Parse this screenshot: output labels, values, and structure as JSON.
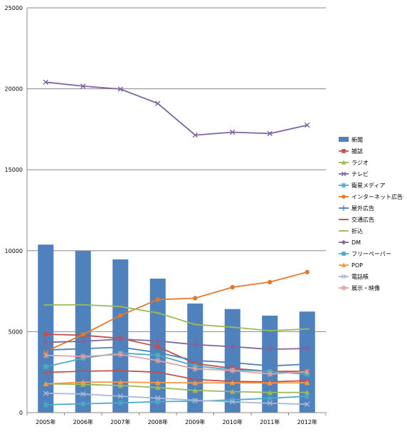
{
  "chart_data": {
    "type": "bar+line",
    "title": "",
    "xlabel": "",
    "ylabel": "",
    "ylim": [
      0,
      25000
    ],
    "yticks": [
      0,
      5000,
      10000,
      15000,
      20000,
      25000
    ],
    "grid": true,
    "legend_position": "right",
    "categories": [
      "2005年",
      "2006年",
      "2007年",
      "2008年",
      "2009年",
      "2010年",
      "2011年",
      "2012年"
    ],
    "series": [
      {
        "name": "新聞",
        "kind": "bar",
        "color": "#4f81bd",
        "marker": "rect",
        "values": [
          10377,
          9986,
          9462,
          8276,
          6739,
          6396,
          5990,
          6242
        ]
      },
      {
        "name": "雑誌",
        "kind": "line",
        "color": "#c0504d",
        "marker": "square",
        "values": [
          4842,
          4777,
          4585,
          4078,
          3034,
          2733,
          2542,
          2551
        ]
      },
      {
        "name": "ラジオ",
        "kind": "line",
        "color": "#9bbb59",
        "marker": "triangle",
        "values": [
          1778,
          1744,
          1671,
          1549,
          1370,
          1299,
          1247,
          1246
        ]
      },
      {
        "name": "テレビ",
        "kind": "line",
        "color": "#8064a2",
        "marker": "x",
        "values": [
          20411,
          20161,
          19981,
          19092,
          17139,
          17321,
          17237,
          17757
        ]
      },
      {
        "name": "衛星メディア",
        "kind": "line",
        "color": "#4bacc6",
        "marker": "star",
        "values": [
          487,
          544,
          603,
          676,
          709,
          784,
          891,
          1013
        ]
      },
      {
        "name": "インターネット広告",
        "kind": "line",
        "color": "#e07b2b",
        "marker": "circle",
        "values": [
          3777,
          4826,
          6003,
          6983,
          7069,
          7747,
          8062,
          8680
        ]
      },
      {
        "name": "屋外広告",
        "kind": "line",
        "color": "#4f81bd",
        "marker": "plus",
        "values": [
          3866,
          3946,
          4041,
          3709,
          3218,
          3095,
          2885,
          2995
        ]
      },
      {
        "name": "交通広告",
        "kind": "line",
        "color": "#c0504d",
        "marker": "dash",
        "values": [
          2482,
          2557,
          2591,
          2495,
          2045,
          1922,
          1900,
          1975
        ]
      },
      {
        "name": "折込",
        "kind": "line",
        "color": "#9bbb59",
        "marker": "dash",
        "values": [
          6649,
          6662,
          6549,
          6156,
          5444,
          5279,
          5061,
          5165
        ]
      },
      {
        "name": "DM",
        "kind": "line",
        "color": "#8064a2",
        "marker": "diamond",
        "values": [
          4349,
          4402,
          4537,
          4427,
          4198,
          4075,
          3910,
          3960
        ]
      },
      {
        "name": "フリーペーパー",
        "kind": "line",
        "color": "#4bacc6",
        "marker": "square",
        "values": [
          2835,
          3357,
          3684,
          3545,
          2881,
          2640,
          2550,
          2367
        ]
      },
      {
        "name": "POP",
        "kind": "line",
        "color": "#f79646",
        "marker": "triangle",
        "values": [
          1771,
          1885,
          1886,
          1852,
          1837,
          1840,
          1832,
          1842
        ]
      },
      {
        "name": "電話帳",
        "kind": "line",
        "color": "#aab8d8",
        "marker": "x",
        "values": [
          1192,
          1150,
          1014,
          892,
          764,
          662,
          583,
          514
        ]
      },
      {
        "name": "展示・映像",
        "kind": "line",
        "color": "#e6a0a0",
        "marker": "star",
        "values": [
          3535,
          3473,
          3589,
          3212,
          2705,
          2596,
          2383,
          2529
        ]
      }
    ]
  }
}
